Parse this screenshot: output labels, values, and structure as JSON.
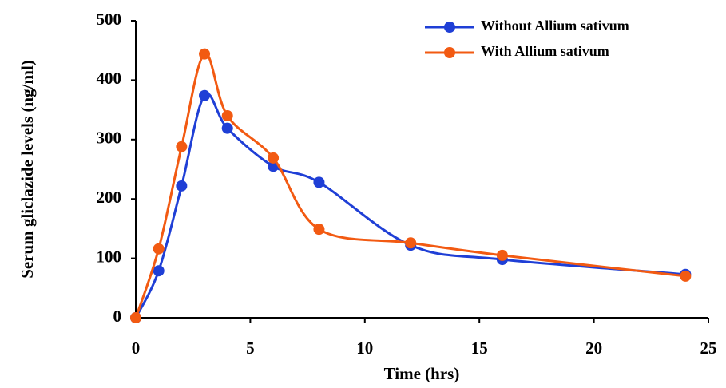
{
  "chart_data": {
    "type": "line",
    "x_label": "Time (hrs)",
    "y_label": "Serum gliclazide levels (ng/ml)",
    "x": [
      0,
      1,
      2,
      3,
      4,
      6,
      8,
      12,
      16,
      24
    ],
    "series": [
      {
        "name": "Without Allium sativum",
        "color": "#1f3fd6",
        "values": [
          0,
          79,
          222,
          374,
          319,
          255,
          228,
          122,
          98,
          73
        ]
      },
      {
        "name": "With Allium sativum",
        "color": "#f25a12",
        "values": [
          0,
          116,
          288,
          444,
          340,
          269,
          149,
          126,
          105,
          70
        ]
      }
    ],
    "xlim": [
      0,
      25
    ],
    "xticks": [
      0,
      5,
      10,
      15,
      20,
      25
    ],
    "ylim": [
      0,
      500
    ],
    "yticks": [
      0,
      100,
      200,
      300,
      400,
      500
    ],
    "smooth": true,
    "grid": false,
    "legend": "top-right"
  }
}
